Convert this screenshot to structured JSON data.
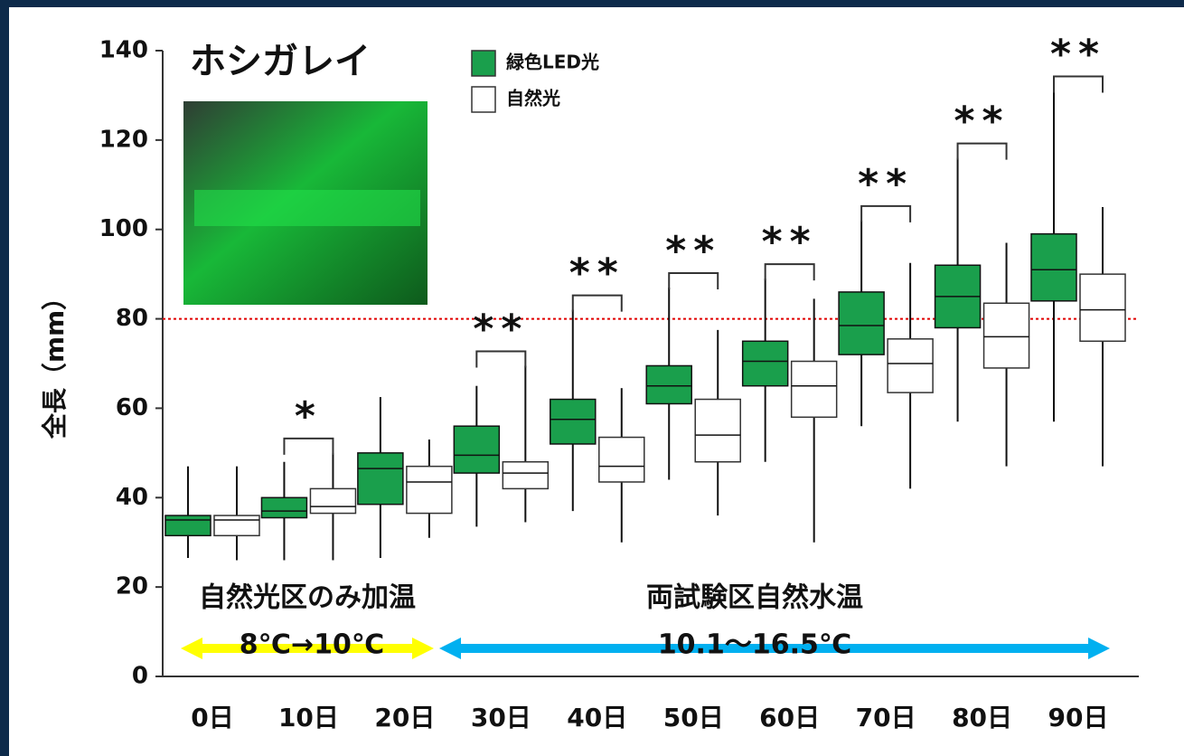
{
  "chart_data": {
    "type": "box",
    "title": "ホシガレイ",
    "y_label": "全長（mm）",
    "categories": [
      "0日",
      "10日",
      "20日",
      "30日",
      "40日",
      "50日",
      "60日",
      "70日",
      "80日",
      "90日"
    ],
    "ylim": [
      0,
      140
    ],
    "yticks": [
      0,
      20,
      40,
      60,
      80,
      100,
      120,
      140
    ],
    "series": [
      {
        "name": "緑色LED光",
        "color": "#1a9f4c",
        "boxes": [
          {
            "min": 26.5,
            "q1": 31.5,
            "median": 35,
            "q3": 36,
            "max": 47
          },
          {
            "min": 26,
            "q1": 35.5,
            "median": 37,
            "q3": 40,
            "max": 48
          },
          {
            "min": 26.5,
            "q1": 38.5,
            "median": 46.5,
            "q3": 50,
            "max": 62.5
          },
          {
            "min": 33.5,
            "q1": 45.5,
            "median": 49.5,
            "q3": 56,
            "max": 65
          },
          {
            "min": 37,
            "q1": 52,
            "median": 57.5,
            "q3": 62,
            "max": 82
          },
          {
            "min": 44,
            "q1": 61,
            "median": 65,
            "q3": 69.5,
            "max": 87
          },
          {
            "min": 48,
            "q1": 65,
            "median": 70.5,
            "q3": 75,
            "max": 89
          },
          {
            "min": 56,
            "q1": 72,
            "median": 78.5,
            "q3": 86,
            "max": 102
          },
          {
            "min": 57,
            "q1": 78,
            "median": 85,
            "q3": 92,
            "max": 116
          },
          {
            "min": 57,
            "q1": 84,
            "median": 91,
            "q3": 99,
            "max": 131
          }
        ]
      },
      {
        "name": "自然光",
        "color": "#ffffff",
        "boxes": [
          {
            "min": 26,
            "q1": 31.5,
            "median": 35,
            "q3": 36,
            "max": 47
          },
          {
            "min": 26,
            "q1": 36.5,
            "median": 38,
            "q3": 42,
            "max": 50
          },
          {
            "min": 31,
            "q1": 36.5,
            "median": 43.5,
            "q3": 47,
            "max": 53
          },
          {
            "min": 34.5,
            "q1": 42,
            "median": 45.5,
            "q3": 48,
            "max": 69.5
          },
          {
            "min": 30,
            "q1": 43.5,
            "median": 47,
            "q3": 53.5,
            "max": 64.5
          },
          {
            "min": 36,
            "q1": 48,
            "median": 54,
            "q3": 62,
            "max": 77.5
          },
          {
            "min": 30,
            "q1": 58,
            "median": 65,
            "q3": 70.5,
            "max": 84.5
          },
          {
            "min": 42,
            "q1": 63.5,
            "median": 70,
            "q3": 75.5,
            "max": 92.5
          },
          {
            "min": 47,
            "q1": 69,
            "median": 76,
            "q3": 83.5,
            "max": 97
          },
          {
            "min": 47,
            "q1": 75,
            "median": 82,
            "q3": 90,
            "max": 105
          }
        ]
      }
    ],
    "significance": [
      null,
      "*",
      null,
      "**",
      "**",
      "**",
      "**",
      "**",
      "**",
      "**"
    ],
    "reference_line": {
      "value": 80,
      "color": "#e00000"
    },
    "periods": [
      {
        "label": "自然光区のみ加温",
        "range": "8℃→10℃",
        "color": "#ffff00"
      },
      {
        "label": "両試験区自然水温",
        "range": "10.1～16.5℃",
        "color": "#00b0f0"
      }
    ]
  }
}
